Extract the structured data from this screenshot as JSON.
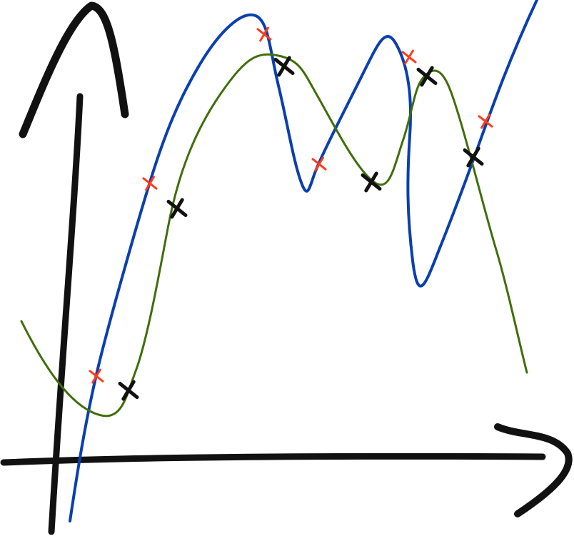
{
  "colors": {
    "axes": "#111111",
    "curve_blue": "#0a3fb0",
    "curve_green": "#3f6e0a",
    "marker_red": "#ff3b1a",
    "marker_black": "#111111"
  },
  "markers": {
    "red_count_on_blue_curve": 6,
    "black_count_on_green_curve": 6
  }
}
